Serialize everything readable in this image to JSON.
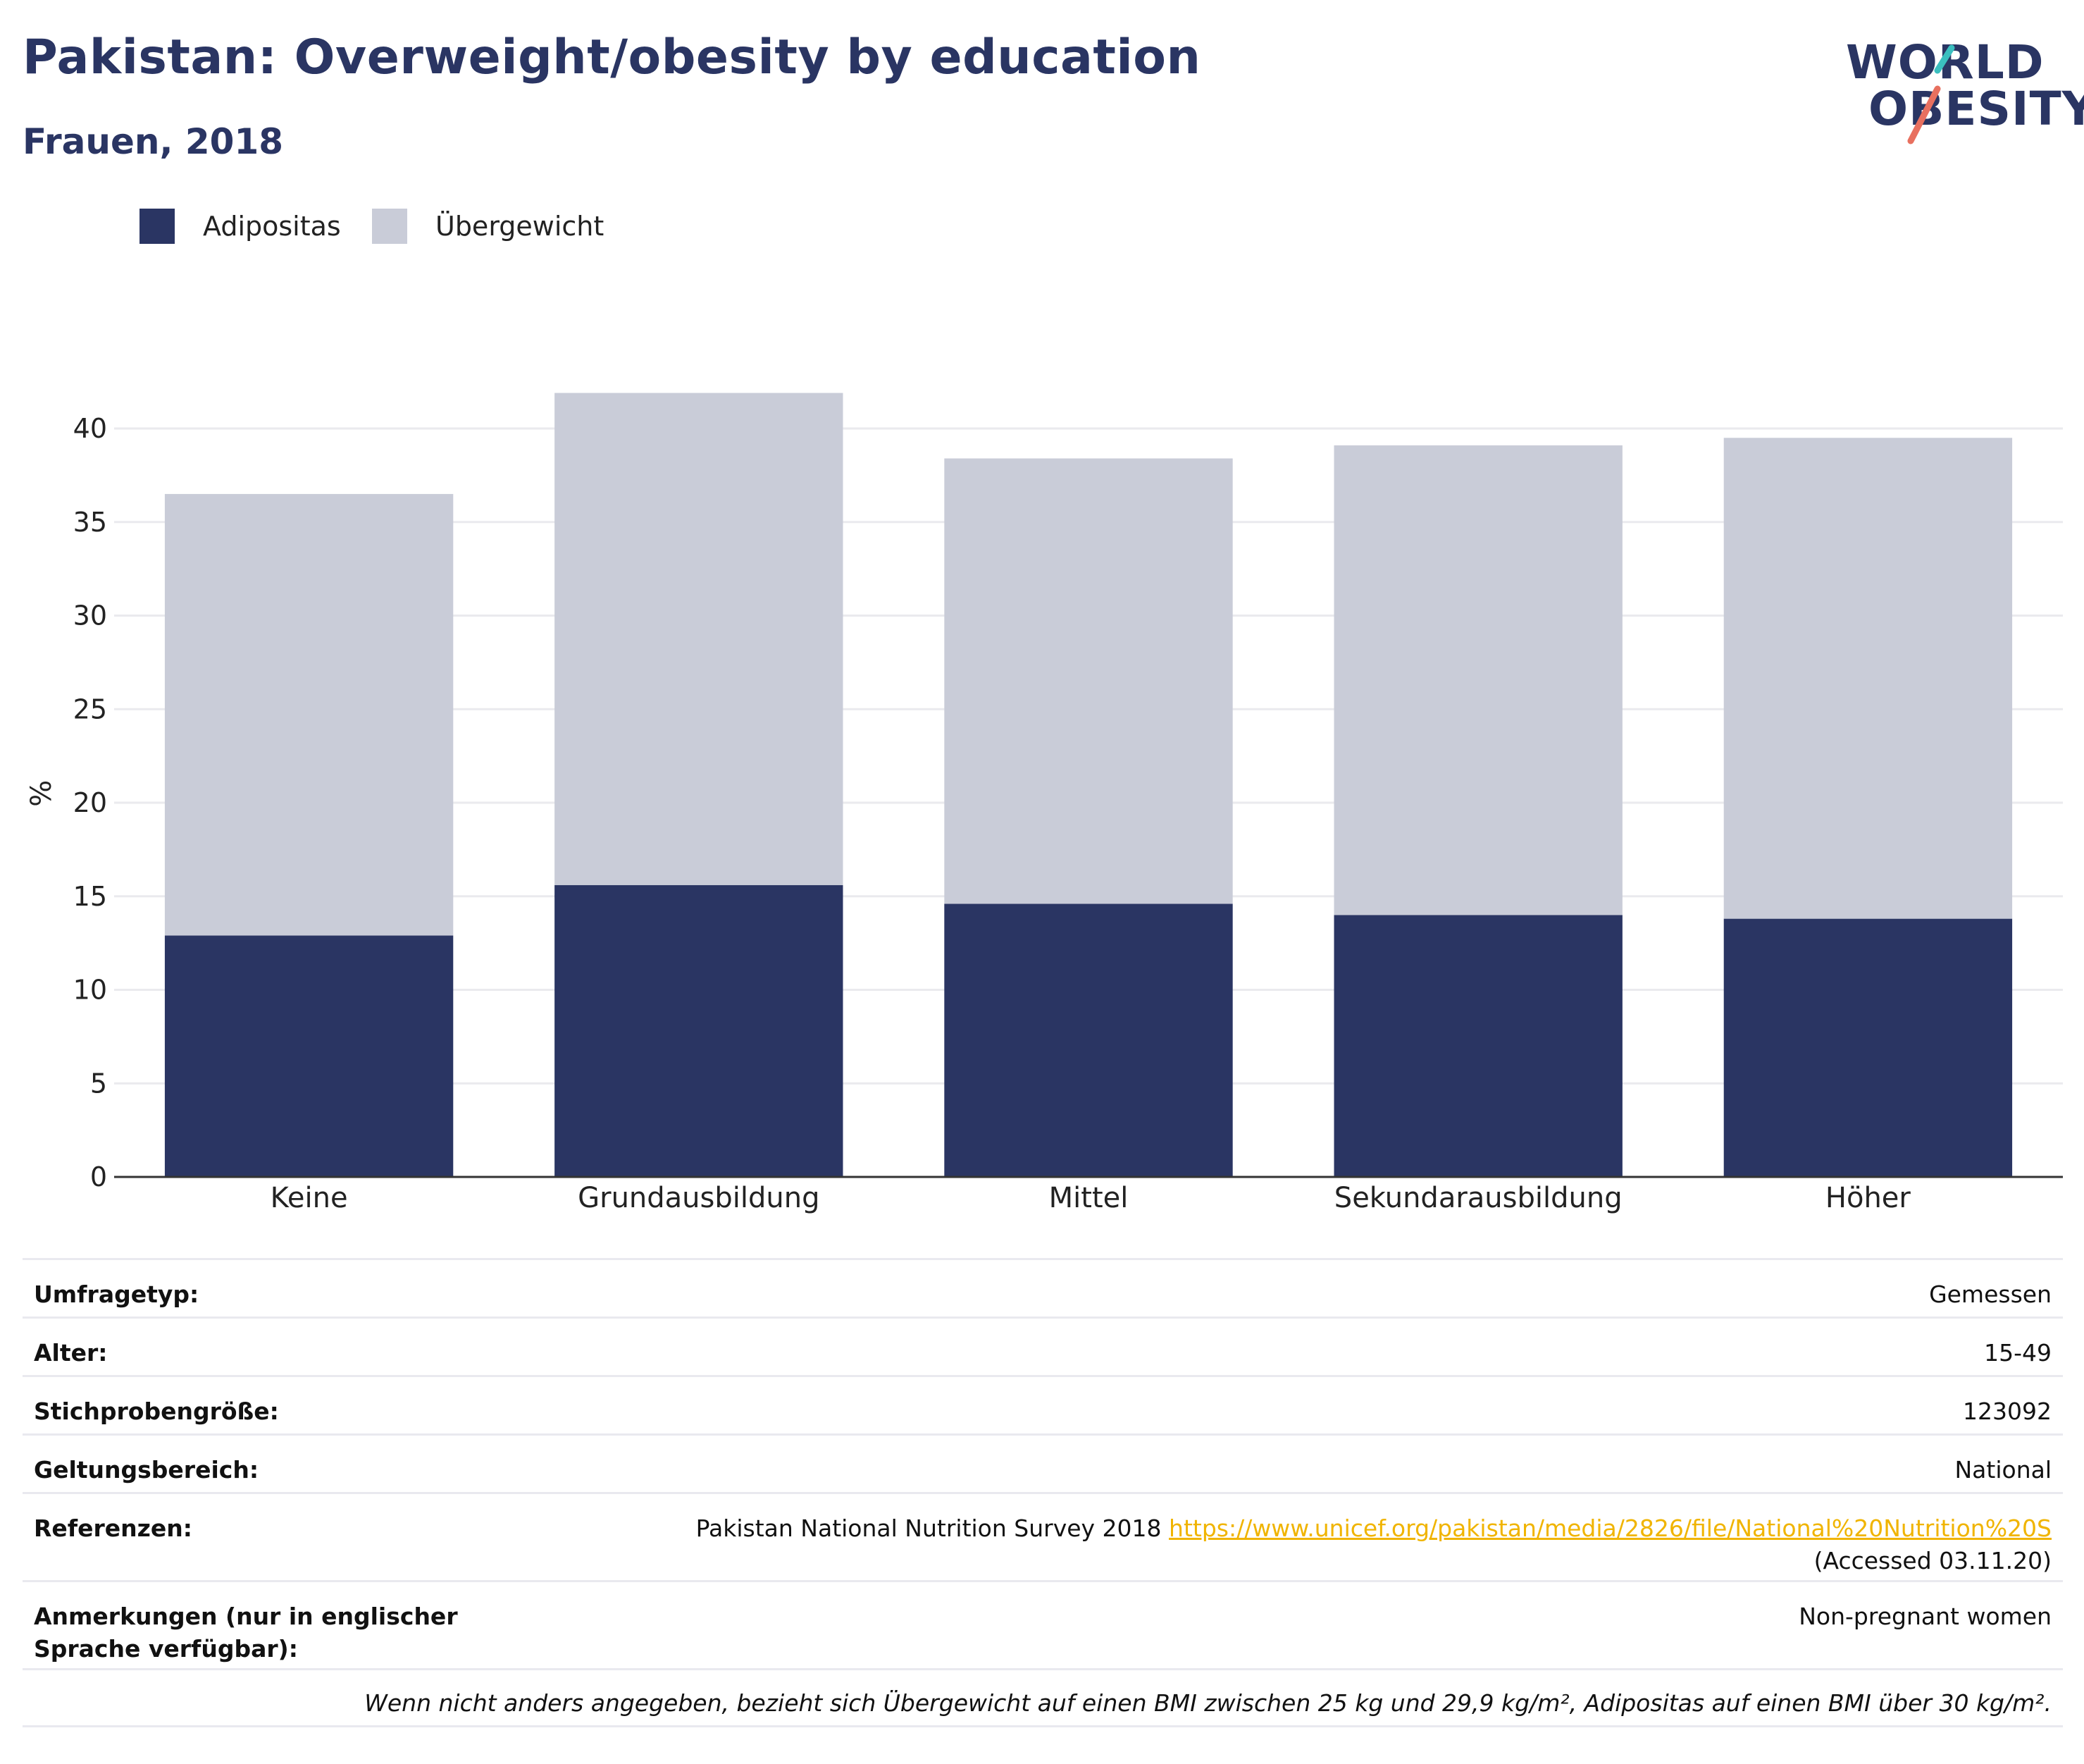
{
  "header": {
    "title": "Pakistan: Overweight/obesity by education",
    "subtitle": "Frauen, 2018"
  },
  "logo": {
    "line1": "WORLD",
    "line2": "OBESITY",
    "slash_colors": [
      "#3bbfbf",
      "#e8705f"
    ]
  },
  "colors": {
    "obesity": "#2a3563",
    "overweight": "#c9ccd8",
    "axis": "#333333",
    "grid": "#eaeaee",
    "link": "#f0b400"
  },
  "chart_data": {
    "type": "bar",
    "stacked": true,
    "categories": [
      "Keine",
      "Grundausbildung",
      "Mittel",
      "Sekundarausbildung",
      "Höher"
    ],
    "series": [
      {
        "name": "Adipositas",
        "values": [
          12.9,
          15.6,
          14.6,
          14.0,
          13.8
        ],
        "color": "#2a3563"
      },
      {
        "name": "Übergewicht",
        "values": [
          23.6,
          26.3,
          23.8,
          25.1,
          25.7
        ],
        "color": "#c9ccd8"
      }
    ],
    "ylabel": "%",
    "ylim": [
      0,
      43
    ],
    "yticks": [
      0,
      5,
      10,
      15,
      20,
      25,
      30,
      35,
      40
    ],
    "grid": true,
    "legend_position": "top-left"
  },
  "info": {
    "rows": [
      {
        "label": "Umfragetyp:",
        "value": "Gemessen"
      },
      {
        "label": "Alter:",
        "value": "15-49"
      },
      {
        "label": "Stichprobengröße:",
        "value": "123092"
      },
      {
        "label": "Geltungsbereich:",
        "value": "National"
      },
      {
        "label": "Referenzen:",
        "value_pre": "Pakistan National Nutrition Survey 2018",
        "link": "https://www.unicef.org/pakistan/media/2826/file/National%20Nutrition%20S",
        "value_post": "(Accessed 03.11.20)"
      },
      {
        "label": "Anmerkungen (nur in englischer Sprache verfügbar):",
        "value": "Non-pregnant women"
      }
    ],
    "footnote": "Wenn nicht anders angegeben, bezieht sich Übergewicht auf einen BMI zwischen 25 kg und 29,9 kg/m², Adipositas auf einen BMI über 30 kg/m²."
  }
}
